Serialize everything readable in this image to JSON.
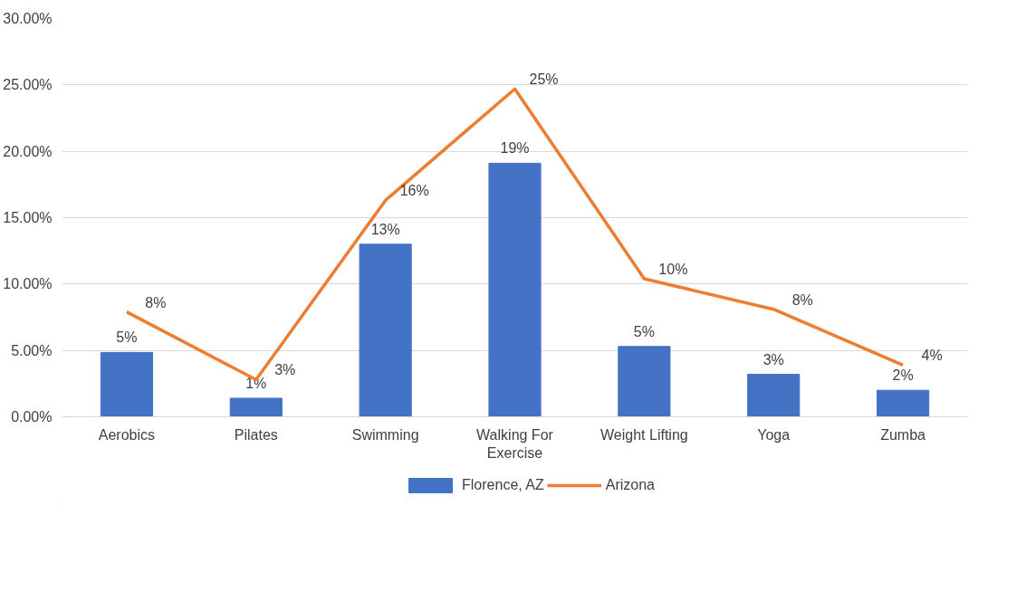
{
  "chart_data": {
    "type": "bar",
    "categories": [
      "Aerobics",
      "Pilates",
      "Swimming",
      "Walking For Exercise",
      "Weight Lifting",
      "Yoga",
      "Zumba"
    ],
    "series": [
      {
        "name": "Florence, AZ",
        "color": "#4472c4",
        "values": [
          4.85,
          1.4,
          13.0,
          19.1,
          5.3,
          3.2,
          2.0
        ],
        "value_labels": [
          "5%",
          "1%",
          "13%",
          "19%",
          "5%",
          "3%",
          "2%"
        ]
      },
      {
        "name": "Arizona",
        "type": "line",
        "color": "#ed7d31",
        "values": [
          7.9,
          2.8,
          16.3,
          24.7,
          10.4,
          8.1,
          3.9
        ],
        "value_labels": [
          "8%",
          "3%",
          "16%",
          "25%",
          "10%",
          "8%",
          "4%"
        ]
      }
    ],
    "ylim": [
      0,
      30
    ],
    "yticks": [
      {
        "value": 0,
        "label": "0.00%"
      },
      {
        "value": 5,
        "label": "5.00%"
      },
      {
        "value": 10,
        "label": "10.00%"
      },
      {
        "value": 15,
        "label": "15.00%"
      },
      {
        "value": 20,
        "label": "20.00%"
      },
      {
        "value": 25,
        "label": "25.00%"
      },
      {
        "value": 30,
        "label": "30.00%"
      }
    ],
    "grid": "y",
    "legend": "bottom",
    "marker": "none",
    "line_style": "solid"
  }
}
